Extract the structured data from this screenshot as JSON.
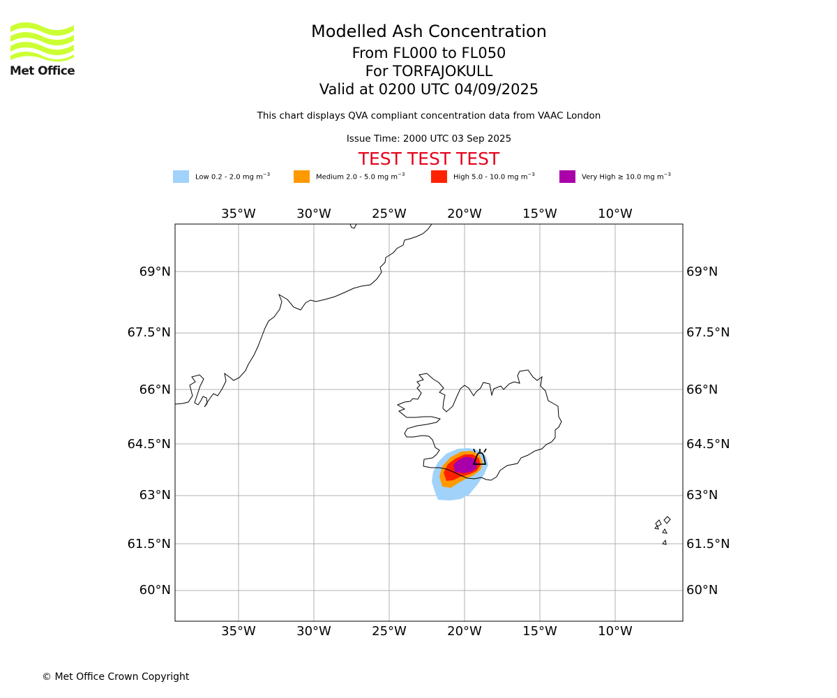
{
  "logo": {
    "text": "Met Office",
    "icon": "met-office-wave-logo",
    "color": "#ccff33"
  },
  "titles": {
    "main": "Modelled Ash Concentration",
    "levels": "From FL000 to FL050",
    "volcano": "For TORFAJOKULL",
    "valid": "Valid at 0200 UTC 04/09/2025"
  },
  "subtitle": "This chart displays QVA compliant concentration data from VAAC London",
  "issue_time": "Issue Time: 2000 UTC 03 Sep 2025",
  "test_banner": "TEST TEST TEST",
  "legend": [
    {
      "label": "Low 0.2 - 2.0 mg m",
      "unit_exp": "−3",
      "color": "#a0d2fa"
    },
    {
      "label": "Medium 2.0 - 5.0 mg m",
      "unit_exp": "−3",
      "color": "#ff9900"
    },
    {
      "label": "High 5.0 - 10.0 mg m",
      "unit_exp": "−3",
      "color": "#ff2200"
    },
    {
      "label": "Very High  ≥  10.0 mg m",
      "unit_exp": "−3",
      "color": "#aa00aa"
    }
  ],
  "map": {
    "lon_ticks": [
      "35°W",
      "30°W",
      "25°W",
      "20°W",
      "15°W",
      "10°W"
    ],
    "lat_ticks": [
      "69°N",
      "67.5°N",
      "66°N",
      "64.5°N",
      "63°N",
      "61.5°N",
      "60°N"
    ],
    "extent": {
      "lon": [
        -39.2,
        -5.5
      ],
      "lat": [
        59.2,
        70.2
      ]
    },
    "gridlines": true,
    "volcano_marker_icon": "volcano-marker-icon"
  },
  "copyright": "© Met Office Crown Copyright"
}
